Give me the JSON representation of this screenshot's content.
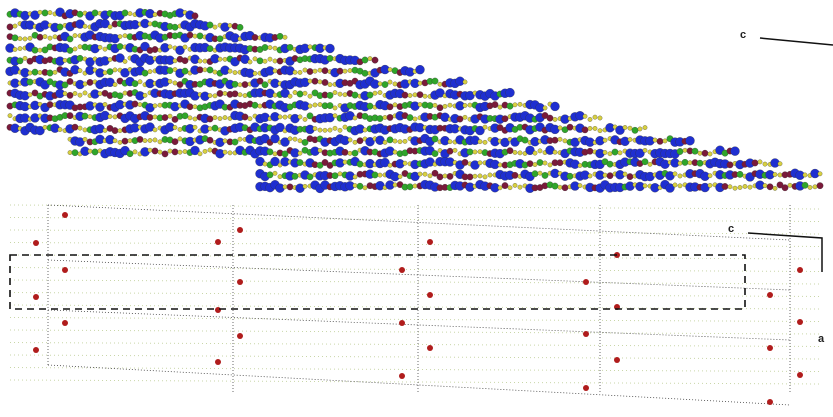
{
  "top_panel": {
    "axis_label_c": "c"
  },
  "bottom_panel": {
    "axis_label_c": "c",
    "axis_label_a": "a"
  }
}
